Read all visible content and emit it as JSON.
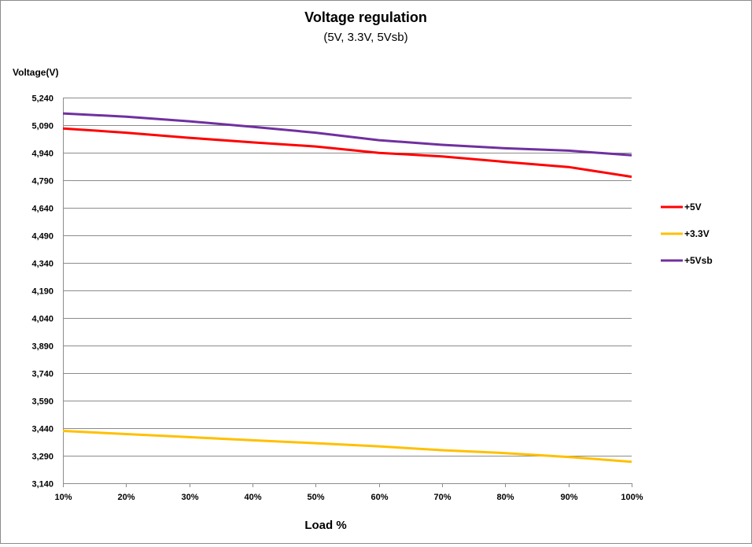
{
  "chart_data": {
    "type": "line",
    "title": "Voltage regulation",
    "subtitle": "(5V, 3.3V, 5Vsb)",
    "xlabel": "Load %",
    "ylabel": "Voltage(V)",
    "ylim": [
      3.14,
      5.24
    ],
    "grid": true,
    "legend_position": "right",
    "x": [
      "10%",
      "20%",
      "30%",
      "40%",
      "50%",
      "60%",
      "70%",
      "80%",
      "90%",
      "100%"
    ],
    "y_ticks": [
      "3,140",
      "3,290",
      "3,440",
      "3,590",
      "3,740",
      "3,890",
      "4,040",
      "4,190",
      "4,340",
      "4,490",
      "4,640",
      "4,790",
      "4,940",
      "5,090",
      "5,240"
    ],
    "y_tick_values": [
      3.14,
      3.29,
      3.44,
      3.59,
      3.74,
      3.89,
      4.04,
      4.19,
      4.34,
      4.49,
      4.64,
      4.79,
      4.94,
      5.09,
      5.24
    ],
    "series": [
      {
        "name": "+5V",
        "color": "#ff0000",
        "values": [
          5.072,
          5.049,
          5.021,
          4.996,
          4.974,
          4.939,
          4.92,
          4.89,
          4.862,
          4.809
        ]
      },
      {
        "name": "+3.3V",
        "color": "#ffc000",
        "values": [
          3.425,
          3.408,
          3.391,
          3.374,
          3.358,
          3.341,
          3.32,
          3.304,
          3.283,
          3.257
        ]
      },
      {
        "name": "+5Vsb",
        "color": "#7030a0",
        "values": [
          5.154,
          5.136,
          5.111,
          5.081,
          5.049,
          5.008,
          4.983,
          4.964,
          4.951,
          4.926
        ]
      }
    ]
  }
}
